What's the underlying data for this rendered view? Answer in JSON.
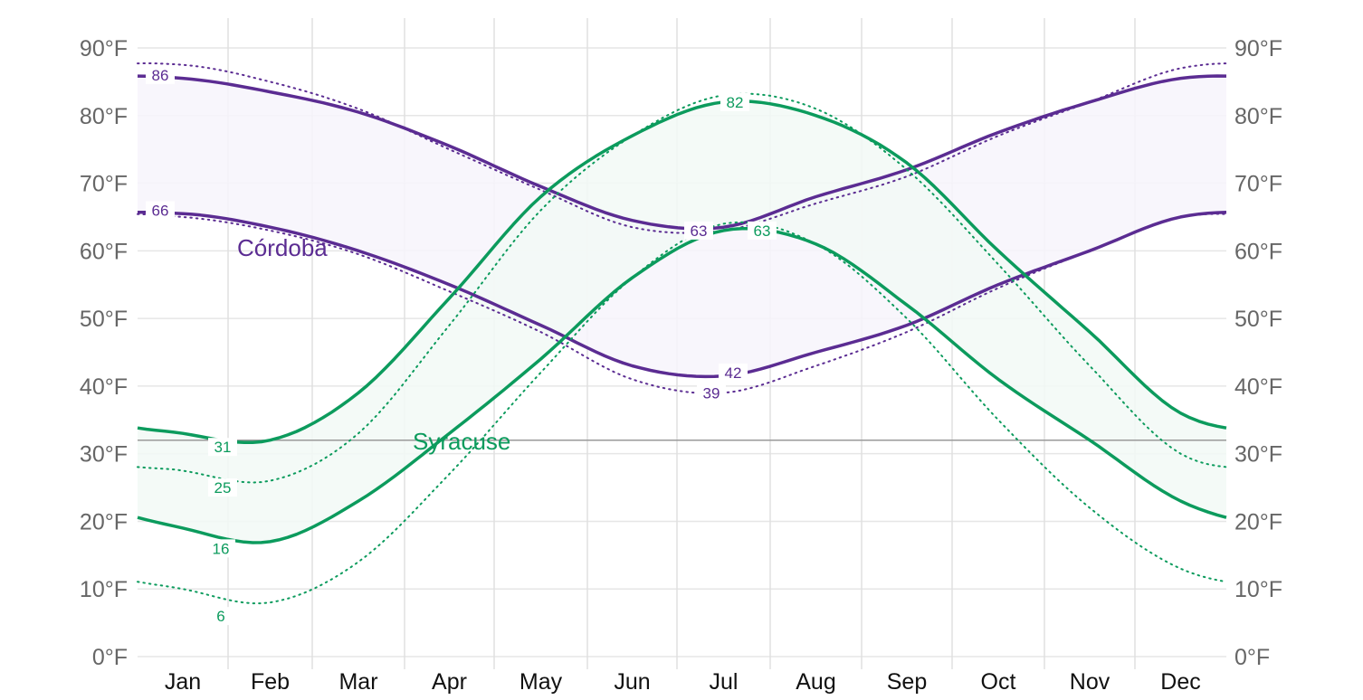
{
  "chart_data": {
    "type": "line",
    "title": "",
    "xlabel": "",
    "ylabel": "",
    "ylim": [
      0,
      90
    ],
    "grid": true,
    "y_ticks": [
      "0°F",
      "10°F",
      "20°F",
      "30°F",
      "40°F",
      "50°F",
      "60°F",
      "70°F",
      "80°F",
      "90°F"
    ],
    "categories": [
      "Jan",
      "Feb",
      "Mar",
      "Apr",
      "May",
      "Jun",
      "Jul",
      "Aug",
      "Sep",
      "Oct",
      "Nov",
      "Dec"
    ],
    "freezing_line": 32,
    "colors": {
      "cordoba": "#5b2c92",
      "syracuse": "#0c9b5d",
      "cordoba_fill": "#f7f4fb",
      "syracuse_fill": "#f2f9f6"
    },
    "series": [
      {
        "name": "Córdoba avg high",
        "city": "Córdoba",
        "style": "solid",
        "values": [
          85.5,
          83.5,
          80.5,
          75.5,
          69.5,
          64.5,
          63.5,
          68,
          72,
          77.5,
          82,
          85.5
        ]
      },
      {
        "name": "Córdoba avg low",
        "city": "Córdoba",
        "style": "solid",
        "values": [
          65.5,
          63.5,
          60,
          55,
          49,
          43,
          41.5,
          45,
          49,
          55,
          60,
          65
        ]
      },
      {
        "name": "Córdoba perceived high",
        "city": "Córdoba",
        "style": "dotted",
        "values": [
          87.5,
          85,
          81,
          75,
          69,
          63.5,
          63,
          67,
          71,
          77,
          82,
          87
        ]
      },
      {
        "name": "Córdoba perceived low",
        "city": "Córdoba",
        "style": "dotted",
        "values": [
          65,
          63,
          59.5,
          54,
          48,
          41,
          39,
          43,
          48,
          54.5,
          60,
          65
        ]
      },
      {
        "name": "Syracuse avg high",
        "city": "Syracuse",
        "style": "solid",
        "values": [
          33,
          32,
          39,
          53,
          68,
          77,
          82,
          80,
          73,
          60,
          48,
          36
        ]
      },
      {
        "name": "Syracuse avg low",
        "city": "Syracuse",
        "style": "solid",
        "values": [
          19,
          17,
          23,
          33,
          44,
          56,
          63,
          61,
          52,
          41,
          32,
          23
        ]
      },
      {
        "name": "Syracuse perceived high",
        "city": "Syracuse",
        "style": "dotted",
        "values": [
          27.5,
          26,
          33,
          49,
          66,
          77,
          83,
          81,
          72,
          58,
          43,
          30
        ]
      },
      {
        "name": "Syracuse perceived low",
        "city": "Syracuse",
        "style": "dotted",
        "values": [
          10,
          8,
          14,
          27,
          42,
          56,
          64,
          61,
          50,
          35,
          22,
          13
        ]
      }
    ],
    "annotations": [
      {
        "text": "86",
        "city": "Córdoba"
      },
      {
        "text": "66",
        "city": "Córdoba"
      },
      {
        "text": "63",
        "city": "Córdoba"
      },
      {
        "text": "42",
        "city": "Córdoba"
      },
      {
        "text": "39",
        "city": "Córdoba"
      },
      {
        "text": "82",
        "city": "Syracuse"
      },
      {
        "text": "63",
        "city": "Syracuse"
      },
      {
        "text": "31",
        "city": "Syracuse"
      },
      {
        "text": "25",
        "city": "Syracuse"
      },
      {
        "text": "16",
        "city": "Syracuse"
      },
      {
        "text": "6",
        "city": "Syracuse"
      }
    ],
    "legend": {
      "cordoba": "Córdoba",
      "syracuse": "Syracuse"
    }
  }
}
